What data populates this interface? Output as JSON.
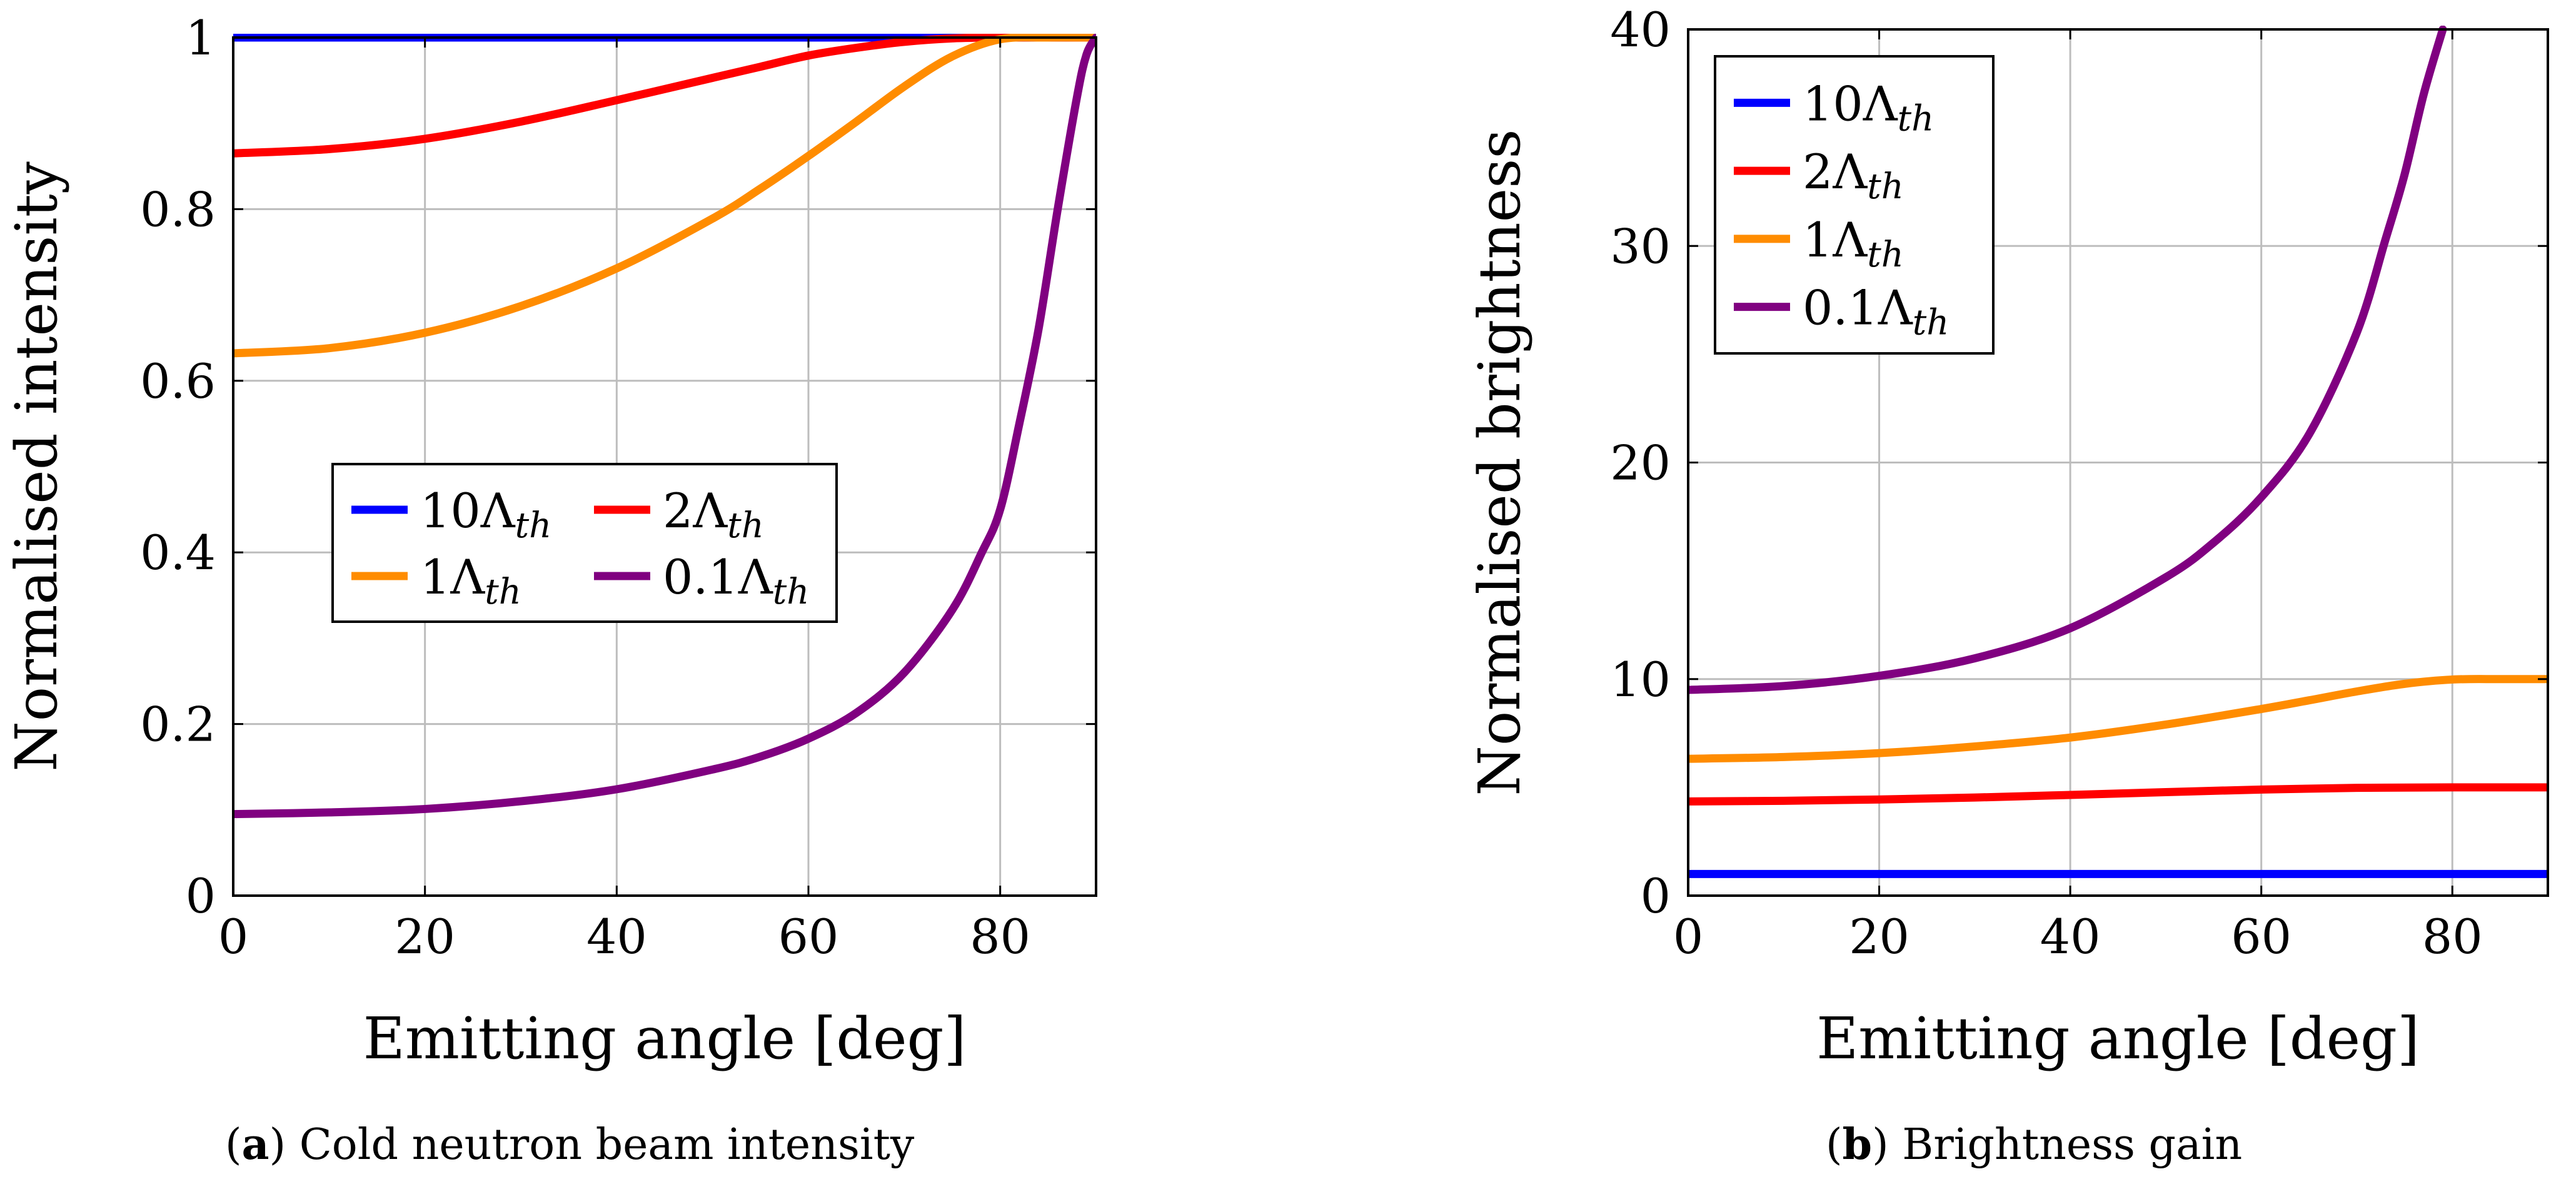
{
  "chart_data": [
    {
      "type": "line",
      "caption": {
        "tag": "a",
        "text": "Cold neutron beam intensity"
      },
      "xlabel": "Emitting angle [deg]",
      "ylabel": "Normalised intensity",
      "xlim": [
        0,
        90
      ],
      "ylim": [
        0,
        1
      ],
      "xticks": [
        0,
        20,
        40,
        60,
        80
      ],
      "yticks": [
        0,
        0.2,
        0.4,
        0.6,
        0.8,
        1
      ],
      "xticklabels": [
        "0",
        "20",
        "40",
        "60",
        "80"
      ],
      "yticklabels": [
        "0",
        "0.2",
        "0.4",
        "0.6",
        "0.8",
        "1"
      ],
      "grid": true,
      "legend": {
        "placement": "center",
        "columns": 2
      },
      "series": [
        {
          "name": "10Λth",
          "label_main": "10Λ",
          "label_sub": "th",
          "color": "#0000ff",
          "x": [
            0,
            10,
            20,
            30,
            40,
            50,
            60,
            70,
            80,
            90
          ],
          "y": [
            1,
            1,
            1,
            1,
            1,
            1,
            1,
            1,
            1,
            1
          ]
        },
        {
          "name": "2Λth",
          "label_main": "2Λ",
          "label_sub": "th",
          "color": "#ff0000",
          "x": [
            0,
            10,
            20,
            30,
            40,
            50,
            55,
            60,
            65,
            70,
            75,
            80,
            90
          ],
          "y": [
            0.865,
            0.87,
            0.882,
            0.902,
            0.927,
            0.953,
            0.966,
            0.979,
            0.988,
            0.995,
            0.999,
            1,
            1
          ]
        },
        {
          "name": "1Λth",
          "label_main": "1Λ",
          "label_sub": "th",
          "color": "#ff8c00",
          "x": [
            0,
            10,
            20,
            30,
            40,
            50,
            55,
            60,
            65,
            70,
            75,
            80,
            85,
            90
          ],
          "y": [
            0.632,
            0.638,
            0.656,
            0.687,
            0.731,
            0.789,
            0.824,
            0.862,
            0.902,
            0.943,
            0.978,
            0.998,
            1,
            1
          ]
        },
        {
          "name": "0.1Λth",
          "label_main": "0.1Λ",
          "label_sub": "th",
          "color": "#800080",
          "x": [
            0,
            10,
            20,
            30,
            40,
            50,
            55,
            60,
            65,
            70,
            75,
            78,
            80,
            82,
            84,
            86,
            88,
            89,
            90
          ],
          "y": [
            0.095,
            0.097,
            0.101,
            0.11,
            0.124,
            0.147,
            0.162,
            0.183,
            0.213,
            0.26,
            0.333,
            0.398,
            0.45,
            0.55,
            0.66,
            0.8,
            0.93,
            0.98,
            1.0
          ]
        }
      ]
    },
    {
      "type": "line",
      "caption": {
        "tag": "b",
        "text": "Brightness gain"
      },
      "xlabel": "Emitting angle [deg]",
      "ylabel": "Normalised brightness",
      "xlim": [
        0,
        90
      ],
      "ylim": [
        0,
        40
      ],
      "xticks": [
        0,
        20,
        40,
        60,
        80
      ],
      "yticks": [
        0,
        10,
        20,
        30,
        40
      ],
      "xticklabels": [
        "0",
        "20",
        "40",
        "60",
        "80"
      ],
      "yticklabels": [
        "0",
        "10",
        "20",
        "30",
        "40"
      ],
      "grid": true,
      "legend": {
        "placement": "top-left",
        "columns": 1
      },
      "series": [
        {
          "name": "10Λth",
          "label_main": "10Λ",
          "label_sub": "th",
          "color": "#0000ff",
          "x": [
            0,
            10,
            20,
            30,
            40,
            50,
            60,
            70,
            80,
            90
          ],
          "y": [
            1,
            1,
            1,
            1,
            1,
            1,
            1,
            1,
            1,
            1
          ]
        },
        {
          "name": "2Λth",
          "label_main": "2Λ",
          "label_sub": "th",
          "color": "#ff0000",
          "x": [
            0,
            10,
            20,
            30,
            40,
            50,
            60,
            70,
            80,
            90
          ],
          "y": [
            4.35,
            4.38,
            4.44,
            4.53,
            4.65,
            4.78,
            4.9,
            4.98,
            5.0,
            5.0
          ]
        },
        {
          "name": "1Λth",
          "label_main": "1Λ",
          "label_sub": "th",
          "color": "#ff8c00",
          "x": [
            0,
            10,
            20,
            30,
            40,
            50,
            60,
            65,
            70,
            75,
            80,
            85,
            90
          ],
          "y": [
            6.32,
            6.4,
            6.58,
            6.89,
            7.3,
            7.9,
            8.62,
            9.02,
            9.43,
            9.78,
            9.98,
            10,
            10
          ]
        },
        {
          "name": "0.1Λth",
          "label_main": "0.1Λ",
          "label_sub": "th",
          "color": "#800080",
          "x": [
            0,
            10,
            20,
            30,
            40,
            50,
            55,
            60,
            65,
            70,
            73,
            75,
            77,
            79
          ],
          "y": [
            9.5,
            9.68,
            10.15,
            10.96,
            12.35,
            14.7,
            16.3,
            18.4,
            21.3,
            26.0,
            30.3,
            33.3,
            37.0,
            40.0
          ]
        }
      ]
    }
  ]
}
